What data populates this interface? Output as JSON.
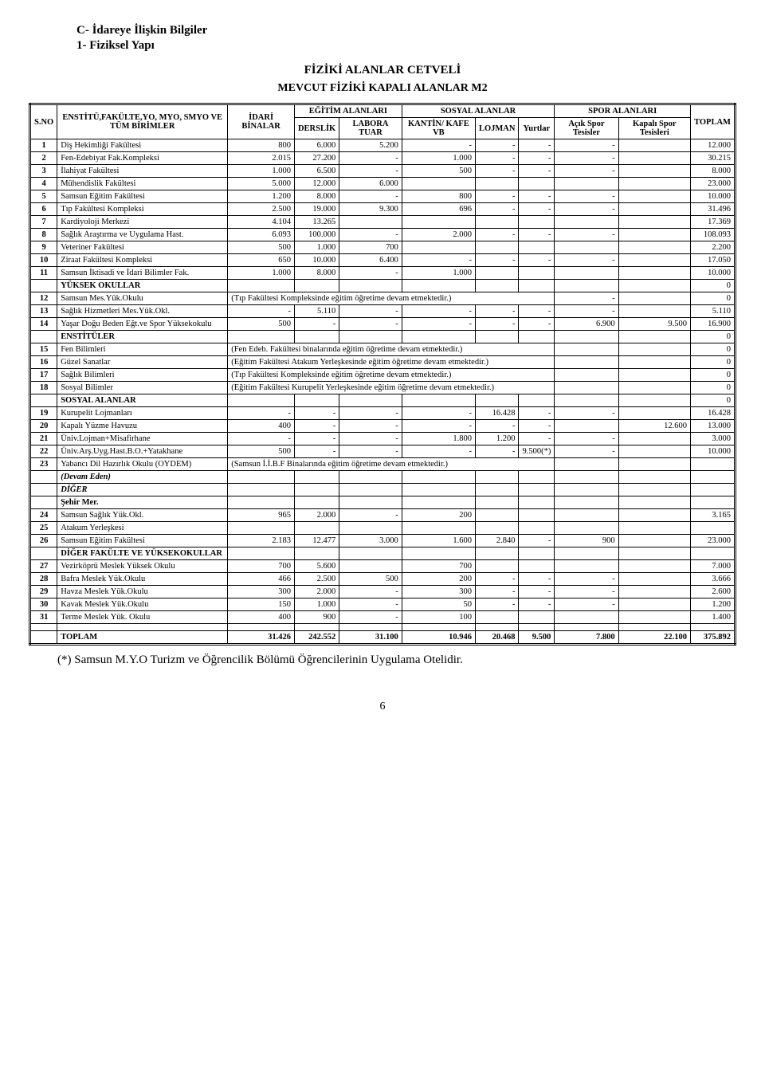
{
  "headers": {
    "sectionC": "C- İdareye İlişkin Bilgiler",
    "section1": "1- Fiziksel Yapı",
    "tableTitle": "FİZİKİ ALANLAR CETVELİ",
    "tableSubtitle": "MEVCUT FİZİKİ KAPALI ALANLAR M2"
  },
  "columns": {
    "sno": "S.NO",
    "name": "ENSTİTÜ,FAKÜLTE,YO, MYO, SMYO VE TÜM BİRİMLER",
    "idari": "İDARİ BİNALAR",
    "egitim_group": "EĞİTİM  ALANLARI",
    "derslik": "DERSLİK",
    "labora": "LABORA TUAR",
    "sosyal_group": "SOSYAL ALANLAR",
    "kantin": "KANTİN/ KAFE VB",
    "lojman": "LOJMAN",
    "yurtlar": "Yurtlar",
    "spor_group": "SPOR ALANLARI",
    "acik": "Açık Spor Tesisler",
    "kapali": "Kapalı Spor Tesisleri",
    "toplam": "TOPLAM"
  },
  "rows": [
    {
      "no": "1",
      "name": "Diş Hekimliği Fakültesi",
      "c": [
        "800",
        "6.000",
        "5.200",
        "-",
        "-",
        "-",
        "-",
        "",
        "",
        "12.000"
      ]
    },
    {
      "no": "2",
      "name": "Fen-Edebiyat Fak.Kompleksi",
      "c": [
        "2.015",
        "27.200",
        "-",
        "1.000",
        "-",
        "-",
        "-",
        "",
        "",
        "30.215"
      ]
    },
    {
      "no": "3",
      "name": "İlahiyat Fakültesi",
      "c": [
        "1.000",
        "6.500",
        "-",
        "500",
        "-",
        "-",
        "-",
        "",
        "",
        "8.000"
      ]
    },
    {
      "no": "4",
      "name": "Mühendislik Fakültesi",
      "c": [
        "5.000",
        "12.000",
        "6.000",
        "",
        "",
        "",
        "",
        "",
        "",
        "23.000"
      ]
    },
    {
      "no": "5",
      "name": "Samsun Eğitim Fakültesi",
      "c": [
        "1.200",
        "8.000",
        "-",
        "800",
        "-",
        "-",
        "-",
        "",
        "",
        "10.000"
      ]
    },
    {
      "no": "6",
      "name": "Tıp Fakültesi Kompleksi",
      "c": [
        "2.500",
        "19.000",
        "9.300",
        "696",
        "-",
        "-",
        "-",
        "",
        "",
        "31.496"
      ]
    },
    {
      "no": "7",
      "name": "Kardiyoloji Merkezi",
      "c": [
        "4.104",
        "13.265",
        "",
        "",
        "",
        "",
        "",
        "",
        "",
        "17.369"
      ]
    },
    {
      "no": "8",
      "name": "Sağlık Araştırma ve Uygulama Hast.",
      "c": [
        "6.093",
        "100.000",
        "-",
        "2.000",
        "-",
        "-",
        "-",
        "",
        "",
        "108.093"
      ]
    },
    {
      "no": "9",
      "name": "Veteriner Fakültesi",
      "c": [
        "500",
        "1.000",
        "700",
        "",
        "",
        "",
        "",
        "",
        "",
        "2.200"
      ]
    },
    {
      "no": "10",
      "name": "Ziraat Fakültesi Kompleksi",
      "c": [
        "650",
        "10.000",
        "6.400",
        "-",
        "-",
        "-",
        "-",
        "",
        "",
        "17.050"
      ]
    },
    {
      "no": "11",
      "name": "Samsun İktisadi ve İdari Bilimler Fak.",
      "c": [
        "1.000",
        "8.000",
        "-",
        "1.000",
        "",
        "",
        "",
        "",
        "",
        "10.000"
      ]
    }
  ],
  "section_yuksek": "YÜKSEK OKULLAR",
  "rows2": [
    {
      "no": "12",
      "name": "Samsun Mes.Yük.Okulu",
      "note": "(Tıp Fakültesi Kompleksinde eğitim öğretime devam etmektedir.)",
      "tail": [
        "-",
        "",
        "0"
      ]
    },
    {
      "no": "13",
      "name": "Sağlık Hizmetleri Mes.Yük.Okl.",
      "c": [
        "-",
        "5.110",
        "-",
        "-",
        "-",
        "-",
        "-",
        "",
        "",
        "5.110"
      ]
    },
    {
      "no": "14",
      "name": "Yaşar Doğu Beden Eğt.ve Spor Yüksekokulu",
      "c": [
        "500",
        "-",
        "-",
        "-",
        "-",
        "-",
        "6.900",
        "",
        "9.500",
        "16.900"
      ]
    }
  ],
  "section_enst": "ENSTİTÜLER",
  "rows3": [
    {
      "no": "15",
      "name": "Fen Bilimleri",
      "note": "(Fen Edeb. Fakültesi binalarında eğitim öğretime devam etmektedir.)",
      "tail": [
        "",
        "",
        "0"
      ]
    },
    {
      "no": "16",
      "name": "Güzel Sanatlar",
      "note": "(Eğitim Fakültesi Atakum Yerleşkesinde eğitim öğretime devam etmektedir.)",
      "tail": [
        "",
        "",
        "0"
      ]
    },
    {
      "no": "17",
      "name": "Sağlık Bilimleri",
      "note": "(Tıp Fakültesi Kompleksinde eğitim öğretime devam etmektedir.)",
      "tail": [
        "",
        "",
        "0"
      ]
    },
    {
      "no": "18",
      "name": "Sosyal Bilimler",
      "note": "(Eğitim Fakültesi Kurupelit Yerleşkesinde eğitim öğretime devam etmektedir.)",
      "tail": [
        "",
        "",
        "0"
      ]
    }
  ],
  "section_sosyal": "SOSYAL ALANLAR",
  "rows4": [
    {
      "no": "19",
      "name": "Kurupelit Lojmanları",
      "c": [
        "-",
        "-",
        "-",
        "-",
        "16.428",
        "-",
        "-",
        "",
        "",
        "16.428"
      ]
    },
    {
      "no": "20",
      "name": "Kapalı Yüzme Havuzu",
      "c": [
        "400",
        "-",
        "-",
        "-",
        "-",
        "-",
        "",
        "",
        "12.600",
        "13.000"
      ]
    },
    {
      "no": "21",
      "name": "Üniv.Lojman+Misafirhane",
      "c": [
        "-",
        "-",
        "-",
        "1.800",
        "1.200",
        "-",
        "-",
        "",
        "",
        "3.000"
      ]
    },
    {
      "no": "22",
      "name": "Üniv.Arş.Uyg.Hast.B.O.+Yatakhane",
      "c": [
        "500",
        "-",
        "-",
        "-",
        "-",
        "9.500(*)",
        "-",
        "",
        "",
        "10.000"
      ]
    },
    {
      "no": "23",
      "name": "Yabancı Dil Hazırlık Okulu (OYDEM)",
      "note": "(Samsun İ.İ.B.F Binalarında eğitim öğretime devam etmektedir.)",
      "tail": [
        "",
        "",
        ""
      ]
    }
  ],
  "devam": "(Devam Eden)",
  "diger": "DİĞER",
  "sehir": "Şehir Mer.",
  "rows5": [
    {
      "no": "24",
      "name": "Samsun Sağlık Yük.Okl.",
      "c": [
        "965",
        "2.000",
        "-",
        "200",
        "",
        "",
        "",
        "",
        "",
        "3.165"
      ]
    },
    {
      "no": "25",
      "name": "Atakum Yerleşkesi",
      "c": [
        "",
        "",
        "",
        "",
        "",
        "",
        "",
        "",
        "",
        ""
      ]
    },
    {
      "no": "26",
      "name": "Samsun Eğitim Fakültesi",
      "c": [
        "2.183",
        "12.477",
        "3.000",
        "1.600",
        "2.840",
        "-",
        "900",
        "",
        "",
        "23.000"
      ]
    }
  ],
  "diger_fak": "DİĞER FAKÜLTE VE YÜKSEKOKULLAR",
  "rows6": [
    {
      "no": "27",
      "name": "Vezirköprü Meslek Yüksek Okulu",
      "c": [
        "700",
        "5.600",
        "",
        "700",
        "",
        "",
        "",
        "",
        "",
        "7.000"
      ]
    },
    {
      "no": "28",
      "name": "Bafra Meslek Yük.Okulu",
      "c": [
        "466",
        "2.500",
        "500",
        "200",
        "-",
        "-",
        "-",
        "",
        "",
        "3.666"
      ]
    },
    {
      "no": "29",
      "name": "Havza Meslek Yük.Okulu",
      "c": [
        "300",
        "2.000",
        "-",
        "300",
        "-",
        "-",
        "-",
        "",
        "",
        "2.600"
      ]
    },
    {
      "no": "30",
      "name": "Kavak Meslek Yük.Okulu",
      "c": [
        "150",
        "1.000",
        "-",
        "50",
        "-",
        "-",
        "-",
        "",
        "",
        "1.200"
      ]
    },
    {
      "no": "31",
      "name": "Terme Meslek Yük. Okulu",
      "c": [
        "400",
        "900",
        "-",
        "100",
        "",
        "",
        "",
        "",
        "",
        "1.400"
      ]
    }
  ],
  "total_row": {
    "label": "TOPLAM",
    "c": [
      "31.426",
      "242.552",
      "31.100",
      "10.946",
      "20.468",
      "9.500",
      "7.800",
      "",
      "22.100",
      "375.892"
    ]
  },
  "footnote": "(*) Samsun M.Y.O Turizm ve Öğrencilik Bölümü Öğrencilerinin Uygulama Otelidir.",
  "page": "6",
  "zero": "0",
  "yuksek_tail": "0",
  "enst_tail": "0",
  "sosyal_tail": "0"
}
